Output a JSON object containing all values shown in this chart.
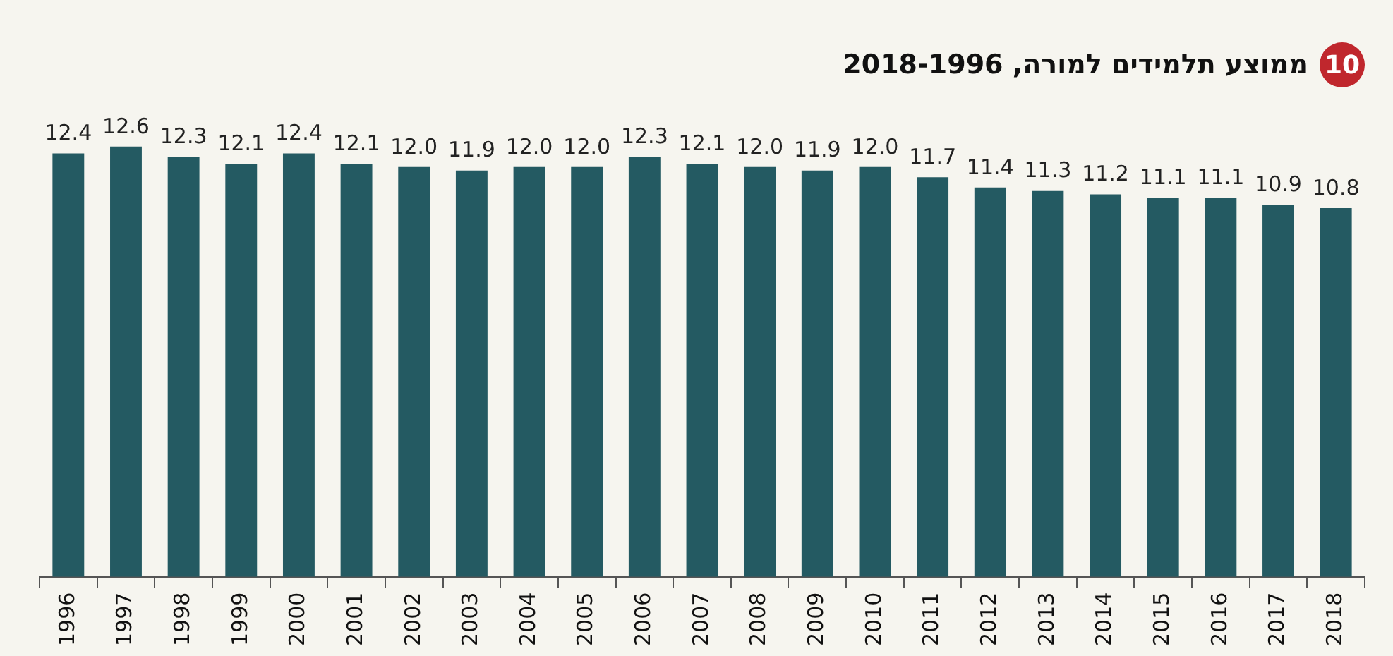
{
  "chart_data": {
    "type": "bar",
    "title": "ממוצע תלמידים למורה, 2018-1996",
    "annotations": [
      "10"
    ],
    "categories": [
      "1996",
      "1997",
      "1998",
      "1999",
      "2000",
      "2001",
      "2002",
      "2003",
      "2004",
      "2005",
      "2006",
      "2007",
      "2008",
      "2009",
      "2010",
      "2011",
      "2012",
      "2013",
      "2014",
      "2015",
      "2016",
      "2017",
      "2018"
    ],
    "values": [
      12.4,
      12.6,
      12.3,
      12.1,
      12.4,
      12.1,
      12.0,
      11.9,
      12.0,
      12.0,
      12.3,
      12.1,
      12.0,
      11.9,
      12.0,
      11.7,
      11.4,
      11.3,
      11.2,
      11.1,
      11.1,
      10.9,
      10.8
    ],
    "value_labels": [
      "12.4",
      "12.6",
      "12.3",
      "12.1",
      "12.4",
      "12.1",
      "12.0",
      "11.9",
      "12.0",
      "12.0",
      "12.3",
      "12.1",
      "12.0",
      "11.9",
      "12.0",
      "11.7",
      "11.4",
      "11.3",
      "11.2",
      "11.1",
      "11.1",
      "10.9",
      "10.8"
    ],
    "color": "#245a62",
    "tick_labels": "x",
    "grid": false,
    "legend": false
  }
}
